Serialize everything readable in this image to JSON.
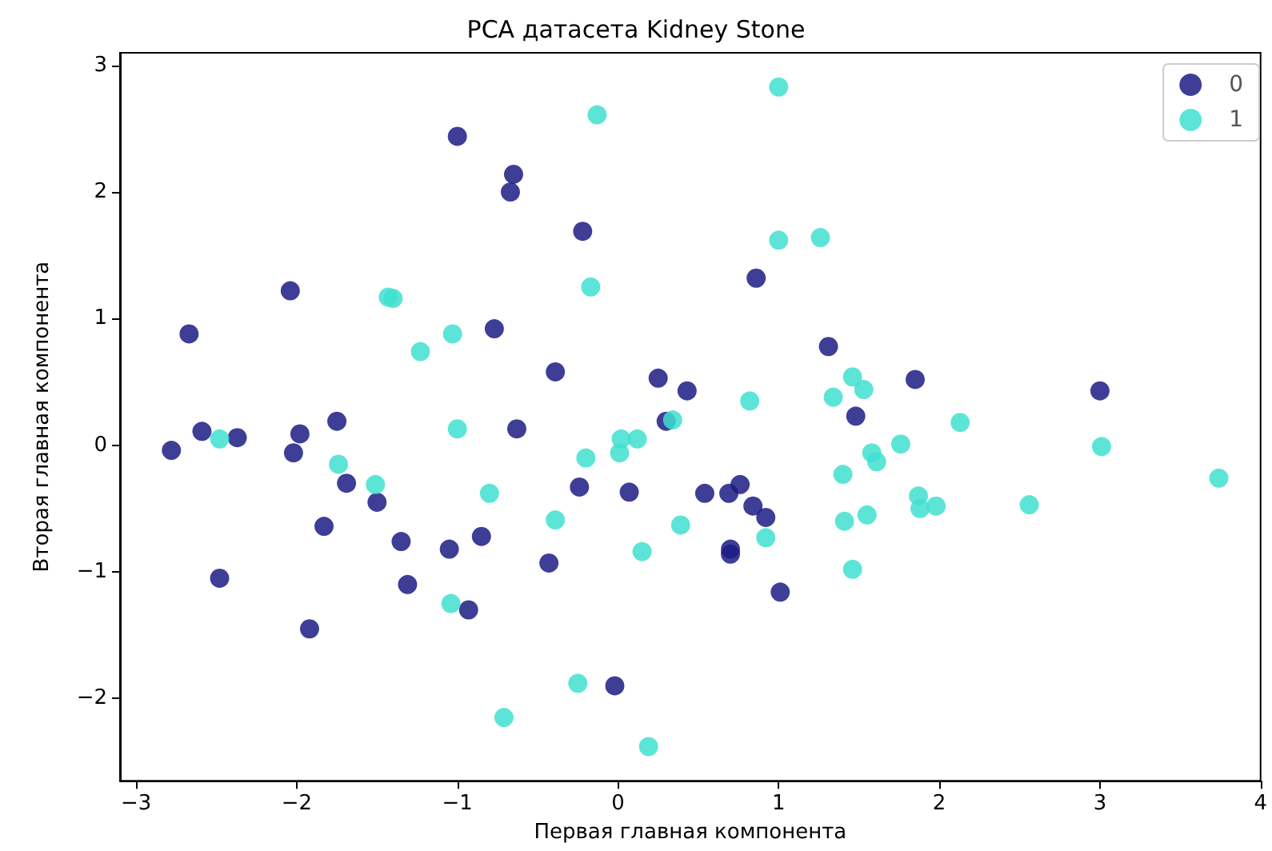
{
  "chart_data": {
    "type": "scatter",
    "title": "PCA датасета Kidney Stone",
    "xlabel": "Первая главная компонента",
    "ylabel": "Вторая главная компонента",
    "xlim": [
      -3.1,
      4.0
    ],
    "ylim": [
      -2.65,
      3.1
    ],
    "xticks": [
      -3,
      -2,
      -1,
      0,
      1,
      2,
      3,
      4
    ],
    "yticks": [
      -2,
      -1,
      0,
      1,
      2,
      3
    ],
    "grid": false,
    "legend": "top right",
    "marker": "circle",
    "series": [
      {
        "name": "0",
        "color": "#1c1c85",
        "x": [
          -2.78,
          -2.67,
          -2.59,
          -2.37,
          -2.48,
          -2.04,
          -1.98,
          -2.02,
          -1.92,
          -1.75,
          -1.69,
          -1.83,
          -1.5,
          -1.35,
          -1.31,
          -1.05,
          -1.0,
          -0.85,
          -0.93,
          -0.65,
          -0.67,
          -0.77,
          -0.63,
          -0.39,
          -0.43,
          -0.22,
          -0.24,
          -0.02,
          0.07,
          0.25,
          0.43,
          0.3,
          0.54,
          0.69,
          0.76,
          0.84,
          0.92,
          0.7,
          0.7,
          1.01,
          0.86,
          1.31,
          1.48,
          1.85,
          3.0
        ],
        "values": [
          -0.04,
          0.88,
          0.11,
          0.06,
          -1.05,
          1.22,
          0.09,
          -0.06,
          -1.45,
          0.19,
          -0.3,
          -0.64,
          -0.45,
          -0.76,
          -1.1,
          -0.82,
          2.44,
          -0.72,
          -1.3,
          2.14,
          2.0,
          0.92,
          0.13,
          0.58,
          -0.93,
          1.69,
          -0.33,
          -1.9,
          -0.37,
          0.53,
          0.43,
          0.19,
          -0.38,
          -0.38,
          -0.31,
          -0.48,
          -0.57,
          -0.82,
          -0.86,
          -1.16,
          1.32,
          0.78,
          0.23,
          0.52,
          0.43
        ]
      },
      {
        "name": "1",
        "color": "#40e0d0",
        "x": [
          1.0,
          -0.13,
          1.0,
          1.26,
          -0.17,
          -1.43,
          -1.4,
          -1.03,
          -1.23,
          -1.0,
          -2.48,
          -1.74,
          -1.51,
          -0.8,
          -0.39,
          -0.2,
          0.02,
          0.01,
          0.12,
          0.34,
          0.15,
          0.39,
          -1.04,
          -0.25,
          -0.71,
          0.19,
          0.82,
          0.92,
          1.34,
          1.46,
          1.53,
          1.4,
          1.41,
          1.55,
          1.46,
          1.58,
          1.61,
          1.76,
          2.13,
          1.87,
          1.88,
          1.98,
          2.56,
          3.01,
          3.74
        ],
        "values": [
          2.83,
          2.61,
          1.62,
          1.64,
          1.25,
          1.17,
          1.16,
          0.88,
          0.74,
          0.13,
          0.05,
          -0.15,
          -0.31,
          -0.38,
          -0.59,
          -0.1,
          0.05,
          -0.06,
          0.05,
          0.2,
          -0.84,
          -0.63,
          -1.25,
          -1.88,
          -2.15,
          -2.38,
          0.35,
          -0.73,
          0.38,
          0.54,
          0.44,
          -0.23,
          -0.6,
          -0.55,
          -0.98,
          -0.06,
          -0.13,
          0.01,
          0.18,
          -0.4,
          -0.5,
          -0.48,
          -0.47,
          -0.01,
          -0.26
        ]
      }
    ]
  }
}
